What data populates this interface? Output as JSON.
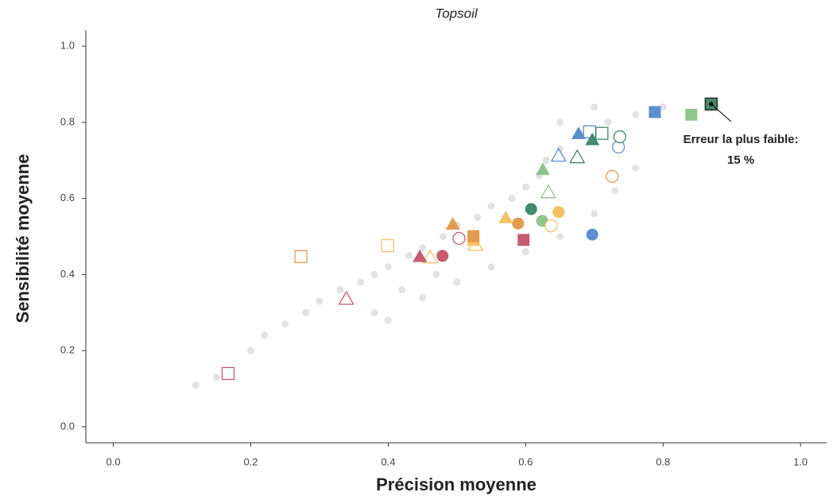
{
  "chart_data": {
    "type": "scatter",
    "title": "Topsoil",
    "x_label": "Précision moyenne",
    "y_label": "Sensibilité moyenne",
    "xlim": [
      -0.04,
      1.038
    ],
    "ylim": [
      -0.042,
      1.042
    ],
    "xticks": [
      {
        "value": 0,
        "label": "0.0"
      },
      0.2,
      0.4,
      0.6,
      0.8,
      {
        "value": 1,
        "label": "1.0"
      }
    ],
    "yticks": [
      {
        "value": 0,
        "label": "0.0"
      },
      0.2,
      0.4,
      0.6,
      0.8,
      {
        "value": 1,
        "label": "1.0"
      }
    ],
    "annotation": [
      "Erreur la plus faible:",
      "15 %"
    ],
    "series": [
      {
        "color": "#d6d6d6",
        "marker": "circle",
        "filled": true,
        "size": 9,
        "opacity": 0.7,
        "x": [
          0.12,
          0.15,
          0.2,
          0.22,
          0.25,
          0.28,
          0.3,
          0.33,
          0.36,
          0.38,
          0.4,
          0.43,
          0.45,
          0.48,
          0.5,
          0.53,
          0.55,
          0.58,
          0.6,
          0.62,
          0.63,
          0.65,
          0.68,
          0.72,
          0.76,
          0.8,
          0.4,
          0.45,
          0.5,
          0.55,
          0.6,
          0.65,
          0.7,
          0.73,
          0.76,
          0.7,
          0.65,
          0.42,
          0.38,
          0.47
        ],
        "y": [
          0.11,
          0.13,
          0.2,
          0.24,
          0.27,
          0.3,
          0.33,
          0.36,
          0.38,
          0.4,
          0.42,
          0.45,
          0.47,
          0.5,
          0.53,
          0.55,
          0.58,
          0.6,
          0.63,
          0.66,
          0.7,
          0.73,
          0.77,
          0.8,
          0.82,
          0.84,
          0.28,
          0.34,
          0.38,
          0.42,
          0.46,
          0.5,
          0.56,
          0.62,
          0.68,
          0.84,
          0.8,
          0.36,
          0.3,
          0.4
        ]
      },
      {
        "color": "#5b8fd0",
        "marker": "square",
        "filled": true,
        "x": [
          0.788
        ],
        "y": [
          0.827
        ]
      },
      {
        "color": "#5b8fd0",
        "marker": "square",
        "filled": false,
        "x": [
          0.693
        ],
        "y": [
          0.775
        ]
      },
      {
        "color": "#5b8fd0",
        "marker": "circle",
        "filled": true,
        "x": [
          0.697
        ],
        "y": [
          0.505
        ]
      },
      {
        "color": "#5b8fd0",
        "marker": "circle",
        "filled": false,
        "x": [
          0.735
        ],
        "y": [
          0.735
        ]
      },
      {
        "color": "#5b8fd0",
        "marker": "triangle",
        "filled": true,
        "x": [
          0.677
        ],
        "y": [
          0.77
        ]
      },
      {
        "color": "#5b8fd0",
        "marker": "triangle",
        "filled": false,
        "x": [
          0.648
        ],
        "y": [
          0.712
        ]
      },
      {
        "color": "#3d8c6b",
        "marker": "square",
        "filled": true,
        "highlight": true,
        "x": [
          0.87
        ],
        "y": [
          0.848
        ]
      },
      {
        "color": "#3d8c6b",
        "marker": "square",
        "filled": false,
        "x": [
          0.711
        ],
        "y": [
          0.771
        ]
      },
      {
        "color": "#3d8c6b",
        "marker": "circle",
        "filled": true,
        "x": [
          0.608
        ],
        "y": [
          0.572
        ]
      },
      {
        "color": "#3d8c6b",
        "marker": "circle",
        "filled": false,
        "x": [
          0.737
        ],
        "y": [
          0.762
        ]
      },
      {
        "color": "#3d8c6b",
        "marker": "triangle",
        "filled": true,
        "x": [
          0.697
        ],
        "y": [
          0.754
        ]
      },
      {
        "color": "#3d8c6b",
        "marker": "triangle",
        "filled": false,
        "x": [
          0.675
        ],
        "y": [
          0.708
        ]
      },
      {
        "color": "#8fc68a",
        "marker": "square",
        "filled": true,
        "x": [
          0.841
        ],
        "y": [
          0.82
        ]
      },
      {
        "color": "#8fc68a",
        "marker": "circle",
        "filled": true,
        "x": [
          0.624
        ],
        "y": [
          0.541
        ]
      },
      {
        "color": "#8fc68a",
        "marker": "triangle",
        "filled": true,
        "x": [
          0.625
        ],
        "y": [
          0.676
        ]
      },
      {
        "color": "#8fc68a",
        "marker": "triangle",
        "filled": false,
        "x": [
          0.633
        ],
        "y": [
          0.616
        ]
      },
      {
        "color": "#f5c060",
        "marker": "circle",
        "filled": true,
        "x": [
          0.648
        ],
        "y": [
          0.564
        ]
      },
      {
        "color": "#f5c060",
        "marker": "circle",
        "filled": false,
        "x": [
          0.637
        ],
        "y": [
          0.528
        ]
      },
      {
        "color": "#f5c060",
        "marker": "triangle",
        "filled": true,
        "x": [
          0.571
        ],
        "y": [
          0.549
        ]
      },
      {
        "color": "#f5c060",
        "marker": "triangle",
        "filled": false,
        "x": [
          0.527,
          0.461
        ],
        "y": [
          0.478,
          0.445
        ]
      },
      {
        "color": "#f5c060",
        "marker": "square",
        "filled": true,
        "x": [
          0.524
        ],
        "y": [
          0.491
        ]
      },
      {
        "color": "#f5c060",
        "marker": "square",
        "filled": false,
        "x": [
          0.399
        ],
        "y": [
          0.476
        ]
      },
      {
        "color": "#e49a4a",
        "marker": "circle",
        "filled": true,
        "x": [
          0.589
        ],
        "y": [
          0.534
        ]
      },
      {
        "color": "#e49a4a",
        "marker": "circle",
        "filled": false,
        "x": [
          0.726
        ],
        "y": [
          0.658
        ]
      },
      {
        "color": "#e49a4a",
        "marker": "triangle",
        "filled": true,
        "x": [
          0.494
        ],
        "y": [
          0.532
        ]
      },
      {
        "color": "#e49a4a",
        "marker": "square",
        "filled": true,
        "x": [
          0.524
        ],
        "y": [
          0.501
        ]
      },
      {
        "color": "#e49a4a",
        "marker": "square",
        "filled": false,
        "x": [
          0.273
        ],
        "y": [
          0.447
        ]
      },
      {
        "color": "#c85a6e",
        "marker": "square",
        "filled": true,
        "x": [
          0.597
        ],
        "y": [
          0.491
        ]
      },
      {
        "color": "#c85a6e",
        "marker": "circle",
        "filled": true,
        "x": [
          0.479
        ],
        "y": [
          0.449
        ]
      },
      {
        "color": "#c85a6e",
        "marker": "circle",
        "filled": false,
        "x": [
          0.503
        ],
        "y": [
          0.495
        ]
      },
      {
        "color": "#c85a6e",
        "marker": "triangle",
        "filled": true,
        "x": [
          0.446
        ],
        "y": [
          0.447
        ]
      },
      {
        "color": "#c85a6e",
        "marker": "triangle",
        "filled": false,
        "x": [
          0.339
        ],
        "y": [
          0.336
        ]
      },
      {
        "color": "#c85a6e",
        "marker": "square",
        "filled": false,
        "x": [
          0.167
        ],
        "y": [
          0.14
        ]
      }
    ]
  }
}
